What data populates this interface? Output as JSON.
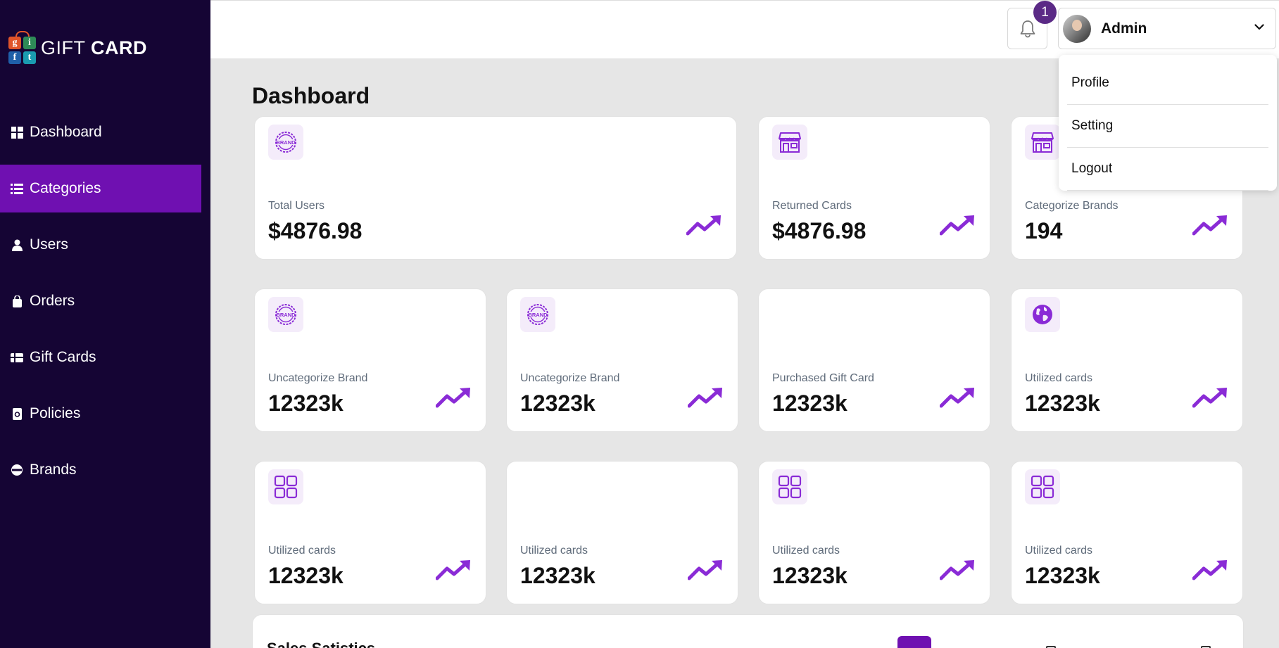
{
  "brand": {
    "text_light": "GIFT ",
    "text_bold": "CARD",
    "logo_letters": [
      "g",
      "i",
      "f",
      "t"
    ]
  },
  "sidebar": {
    "items": [
      {
        "label": "Dashboard",
        "icon": "grid-icon"
      },
      {
        "label": "Categories",
        "icon": "list-icon",
        "active": true
      },
      {
        "label": "Users",
        "icon": "user-icon"
      },
      {
        "label": "Orders",
        "icon": "bag-icon"
      },
      {
        "label": "Gift Cards",
        "icon": "gift-card-icon"
      },
      {
        "label": "Policies",
        "icon": "policy-icon"
      },
      {
        "label": "Brands",
        "icon": "brand-icon"
      }
    ]
  },
  "header": {
    "notification_count": "1",
    "user_name": "Admin",
    "menu": [
      "Profile",
      "Setting",
      "Logout"
    ]
  },
  "page": {
    "title": "Dashboard"
  },
  "stats": [
    {
      "label": "Total Users",
      "value": "$4876.98",
      "icon": "brand-badge-icon"
    },
    {
      "label": "Returned Cards",
      "value": "$4876.98",
      "icon": "store-icon"
    },
    {
      "label": "Categorize Brands",
      "value": "194",
      "icon": "store-icon"
    },
    {
      "label": "Uncategorize Brand",
      "value": "12323k",
      "icon": "brand-badge-icon"
    },
    {
      "label": "Uncategorize Brand",
      "value": "12323k",
      "icon": "brand-badge-icon"
    },
    {
      "label": "Purchased Gift Card",
      "value": "12323k",
      "icon": ""
    },
    {
      "label": "Utilized cards",
      "value": "12323k",
      "icon": "globe-icon"
    },
    {
      "label": "Utilized cards",
      "value": "12323k",
      "icon": "apps-grid-icon"
    },
    {
      "label": "Utilized cards",
      "value": "12323k",
      "icon": ""
    },
    {
      "label": "Utilized cards",
      "value": "12323k",
      "icon": "apps-grid-icon"
    },
    {
      "label": "Utilized cards",
      "value": "12323k",
      "icon": "apps-grid-icon"
    }
  ],
  "sales": {
    "title": "Sales Satistics"
  },
  "colors": {
    "sidebar": "#150534",
    "accent": "#6f10b1",
    "badge": "#5b2a86"
  }
}
